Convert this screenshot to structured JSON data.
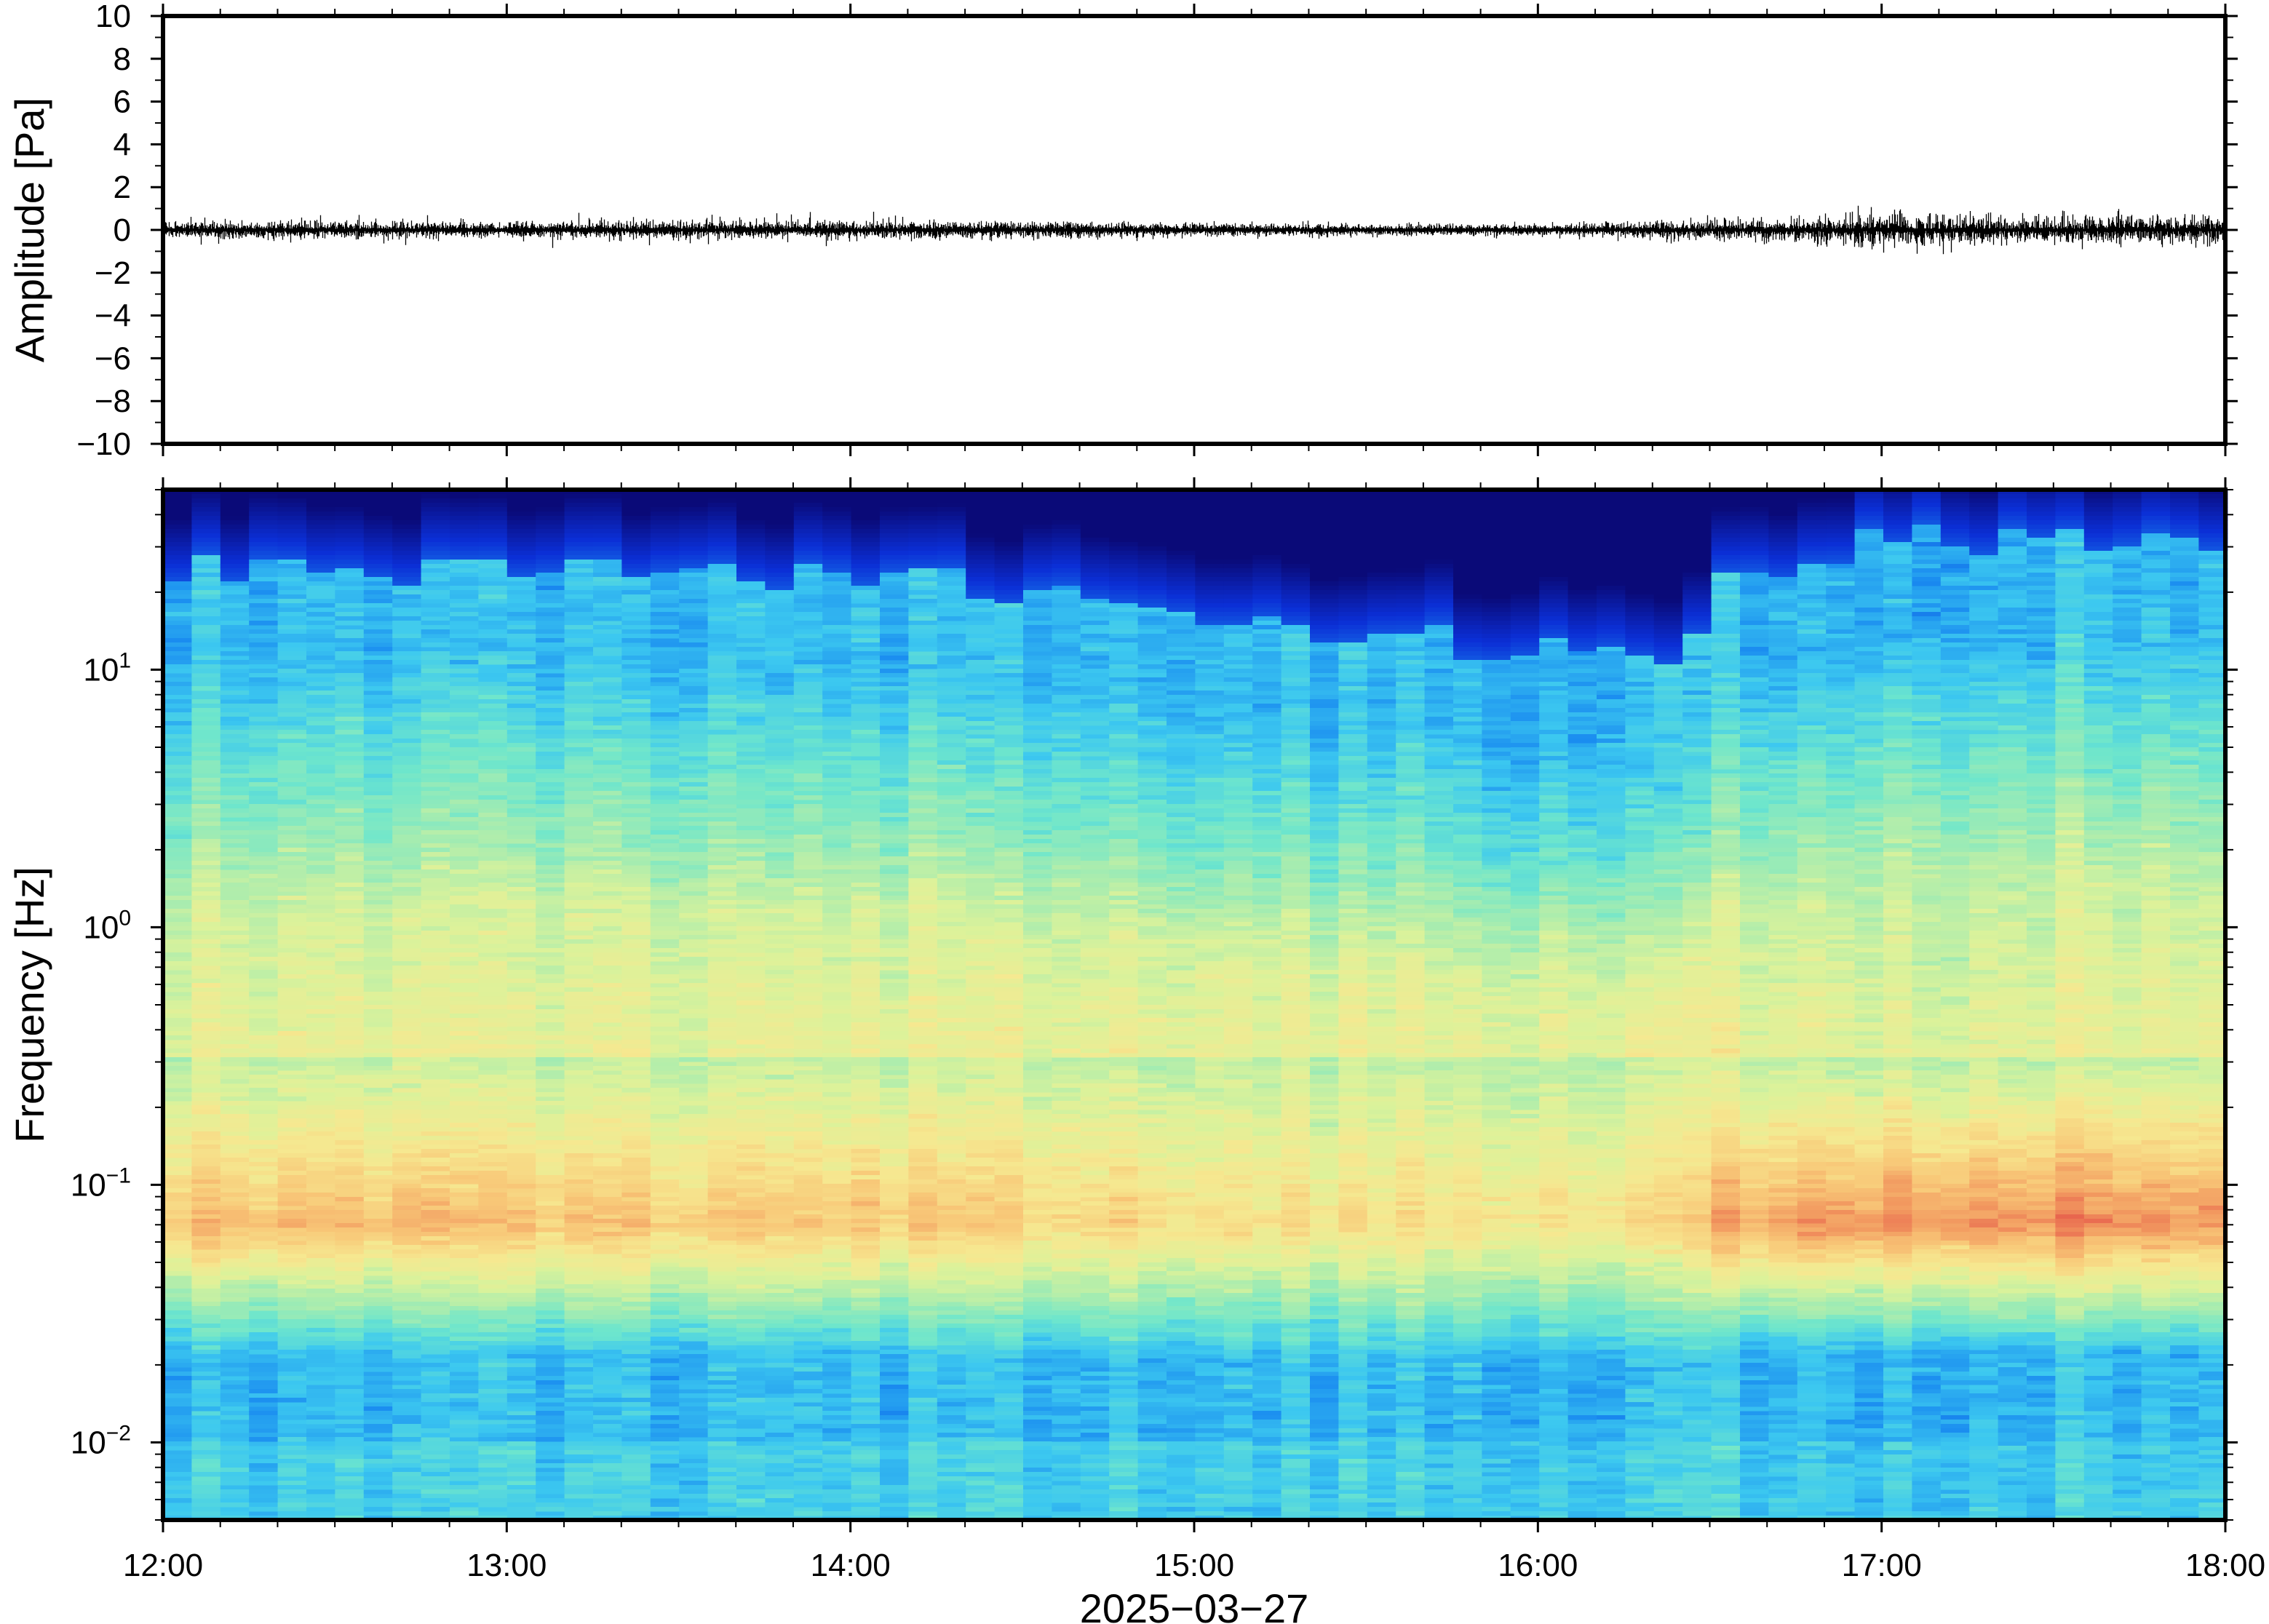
{
  "chart_data": [
    {
      "type": "line",
      "panel": "waveform",
      "ylabel": "Amplitude [Pa]",
      "ylim": [
        -10,
        10
      ],
      "yticks": [
        10,
        8,
        6,
        4,
        2,
        0,
        -2,
        -4,
        -6,
        -8,
        -10
      ],
      "ytick_labels": [
        "10",
        "8",
        "6",
        "4",
        "2",
        "0",
        "−2",
        "−4",
        "−6",
        "−8",
        "−10"
      ],
      "x_range": [
        "12:00",
        "18:00"
      ],
      "series": [
        {
          "color": "#000000",
          "envelope_time_h": [
            12.0,
            12.5,
            13.0,
            13.5,
            14.0,
            14.5,
            15.0,
            15.5,
            16.0,
            16.5,
            16.75,
            17.0,
            17.25,
            17.5,
            17.75,
            18.0
          ],
          "envelope_amplitude": [
            0.35,
            0.35,
            0.3,
            0.35,
            0.35,
            0.3,
            0.25,
            0.2,
            0.2,
            0.35,
            0.45,
            0.7,
            0.6,
            0.55,
            0.55,
            0.6
          ],
          "peak_amplitude": [
            0.8,
            0.7,
            0.9,
            0.7,
            0.9,
            0.6,
            0.5,
            0.4,
            0.4,
            0.7,
            0.9,
            1.4,
            1.2,
            1.0,
            1.0,
            1.1
          ]
        }
      ],
      "grid": false
    },
    {
      "type": "heatmap",
      "panel": "spectrogram",
      "ylabel": "Frequency [Hz]",
      "xlabel": "2025−03−27",
      "y_scale": "log",
      "ylim": [
        0.005,
        50
      ],
      "yticks": [
        10,
        1,
        0.1,
        0.01
      ],
      "ytick_labels": [
        {
          "base": "10",
          "exp": "1"
        },
        {
          "base": "10",
          "exp": "0"
        },
        {
          "base": "10",
          "exp": "−1"
        },
        {
          "base": "10",
          "exp": "−2"
        }
      ],
      "x_range_hours": [
        12,
        18
      ],
      "xtick_labels": [
        "12:00",
        "13:00",
        "14:00",
        "15:00",
        "16:00",
        "17:00",
        "18:00"
      ],
      "colormap": [
        "#0a0a78",
        "#0b2fd6",
        "#1a8cf0",
        "#3cc8f0",
        "#6ee6cc",
        "#a6ecb0",
        "#dcf29a",
        "#f6e890",
        "#f8c878",
        "#f29a60",
        "#e65a4a"
      ],
      "time_h": [
        12.0,
        12.5,
        13.0,
        13.5,
        14.0,
        14.5,
        15.0,
        15.5,
        16.0,
        16.45,
        16.5,
        17.0,
        17.5,
        18.0
      ],
      "dark_cutoff_hz": [
        25,
        24,
        26,
        24,
        24,
        20,
        17,
        14,
        12,
        12,
        22,
        32,
        34,
        28
      ],
      "level_at_0_07hz": [
        0.83,
        0.83,
        0.81,
        0.8,
        0.8,
        0.77,
        0.74,
        0.72,
        0.73,
        0.74,
        0.86,
        0.94,
        0.93,
        0.9
      ],
      "description_levels": "normalized 0-1 colour level; low frequencies cyan, 0.03-0.2 Hz orange-red, high frequencies dark blue",
      "grid": false
    }
  ]
}
